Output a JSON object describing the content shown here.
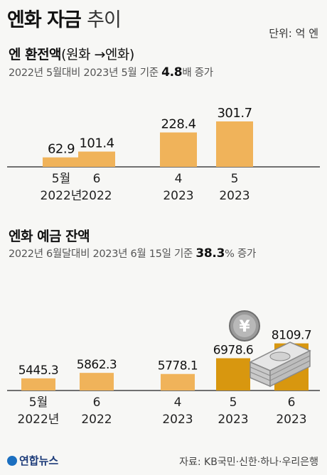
{
  "header": {
    "title_bold": "엔화 자금",
    "title_light": "추이",
    "unit": "단위: 억 엔"
  },
  "section1": {
    "title": "엔 환전액",
    "title_paren": "(원화 →엔화)",
    "subtitle_prefix": "2022년 5월대비 2023년 5월 기준",
    "subtitle_value": "4.8",
    "subtitle_suffix": "배 증가"
  },
  "section2": {
    "title": "엔화 예금 잔액",
    "subtitle_prefix": "2022년 6월달대비 2023년 6월 15일 기준",
    "subtitle_value": "38.3",
    "subtitle_suffix": "% 증가"
  },
  "footer": {
    "logo": "연합뉴스",
    "source": "자료: KB국민·신한·하나·우리은행"
  },
  "colors": {
    "bar_light": "#f0b35a",
    "bar_dark": "#d8970f",
    "axis": "#444444"
  },
  "icons": [
    "yen-coin-icon",
    "banknote-stack-icon"
  ],
  "chart_data": [
    {
      "type": "bar",
      "categories": [
        "5월\n2022년",
        "6\n2022",
        "4\n2023",
        "5\n2023"
      ],
      "values": [
        62.9,
        101.4,
        228.4,
        301.7
      ],
      "labels": [
        "62.9",
        "101.4",
        "228.4",
        "301.7"
      ],
      "title": "엔 환전액(원화 →엔화)",
      "ylabel": "",
      "xlabel": ""
    },
    {
      "type": "bar",
      "categories": [
        "5월\n2022년",
        "6\n2022",
        "4\n2023",
        "5\n2023",
        "6\n2023"
      ],
      "values": [
        5445.3,
        5862.3,
        5778.1,
        6978.6,
        8109.7
      ],
      "labels": [
        "5445.3",
        "5862.3",
        "5778.1",
        "6978.6",
        "8109.7"
      ],
      "title": "엔화 예금 잔액",
      "ylabel": "",
      "xlabel": ""
    }
  ]
}
